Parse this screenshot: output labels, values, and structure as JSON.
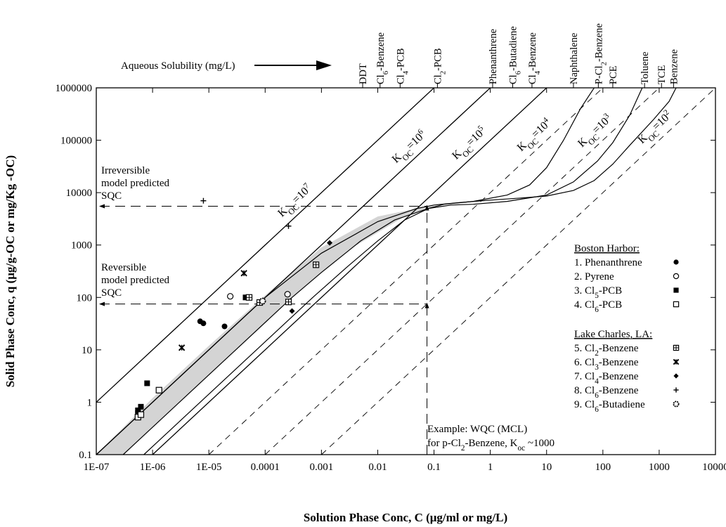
{
  "chart_data": {
    "type": "scatter",
    "title": "",
    "xlabel": "Solution Phase Conc, C (μg/ml or mg/L)",
    "ylabel": "Solid Phase Conc, q (μg/g-OC or mg/Kg -OC)",
    "x_scale": "log",
    "y_scale": "log",
    "xlim": [
      1e-07,
      10000
    ],
    "ylim": [
      0.1,
      1000000
    ],
    "x_ticks": [
      {
        "v": 1e-07,
        "label": "1E-07"
      },
      {
        "v": 1e-06,
        "label": "1E-06"
      },
      {
        "v": 1e-05,
        "label": "1E-05"
      },
      {
        "v": 0.0001,
        "label": "0.0001"
      },
      {
        "v": 0.001,
        "label": "0.001"
      },
      {
        "v": 0.01,
        "label": "0.01"
      },
      {
        "v": 0.1,
        "label": "0.1"
      },
      {
        "v": 1,
        "label": "1"
      },
      {
        "v": 10,
        "label": "10"
      },
      {
        "v": 100,
        "label": "100"
      },
      {
        "v": 1000,
        "label": "1000"
      },
      {
        "v": 10000,
        "label": "10000"
      }
    ],
    "y_ticks": [
      {
        "v": 0.1,
        "label": "0.1"
      },
      {
        "v": 1,
        "label": "1"
      },
      {
        "v": 10,
        "label": "10"
      },
      {
        "v": 100,
        "label": "100"
      },
      {
        "v": 1000,
        "label": "1000"
      },
      {
        "v": 10000,
        "label": "10000"
      },
      {
        "v": 100000,
        "label": "100000"
      },
      {
        "v": 1000000,
        "label": "1000000"
      }
    ],
    "top_axis_label": "Aqueous Solubility (mg/L)",
    "solubility_markers": [
      {
        "x": 0.0054,
        "parts": [
          {
            "t": "DDT"
          }
        ]
      },
      {
        "x": 0.011,
        "parts": [
          {
            "t": "Cl"
          },
          {
            "t": "6",
            "sub": true
          },
          {
            "t": "-Benzene"
          }
        ]
      },
      {
        "x": 0.025,
        "parts": [
          {
            "t": "Cl"
          },
          {
            "t": "4",
            "sub": true
          },
          {
            "t": "-PCB"
          }
        ]
      },
      {
        "x": 0.115,
        "parts": [
          {
            "t": "Cl"
          },
          {
            "t": "2",
            "sub": true
          },
          {
            "t": "-PCB"
          }
        ]
      },
      {
        "x": 1.1,
        "parts": [
          {
            "t": "Phenanthrene"
          }
        ]
      },
      {
        "x": 2.5,
        "parts": [
          {
            "t": "Cl"
          },
          {
            "t": "6",
            "sub": true
          },
          {
            "t": "-Butadiene"
          }
        ]
      },
      {
        "x": 5.5,
        "parts": [
          {
            "t": "Cl"
          },
          {
            "t": "4",
            "sub": true
          },
          {
            "t": "-Benzene"
          }
        ]
      },
      {
        "x": 30,
        "parts": [
          {
            "t": "Naphthalene"
          }
        ]
      },
      {
        "x": 83,
        "parts": [
          {
            "t": "P-Cl"
          },
          {
            "t": "2",
            "sub": true
          },
          {
            "t": "-Benzene"
          }
        ]
      },
      {
        "x": 150,
        "parts": [
          {
            "t": "PCE"
          }
        ]
      },
      {
        "x": 550,
        "parts": [
          {
            "t": "Toluene"
          }
        ]
      },
      {
        "x": 1100,
        "parts": [
          {
            "t": "TCE"
          }
        ]
      },
      {
        "x": 1800,
        "parts": [
          {
            "t": "Benzene"
          }
        ]
      }
    ],
    "koc_lines": [
      {
        "exp": "7",
        "koc": 10000000,
        "solid": true,
        "label_at": 0.00028
      },
      {
        "exp": "6",
        "koc": 1000000,
        "solid": true,
        "label_at": 0.03
      },
      {
        "exp": "5",
        "koc": 100000,
        "solid": true,
        "label_at": 0.35
      },
      {
        "exp": "4",
        "koc": 10000,
        "solid": false,
        "label_at": 5
      },
      {
        "exp": "3",
        "koc": 1000,
        "solid": false,
        "label_at": 60
      },
      {
        "exp": "2",
        "koc": 100,
        "solid": false,
        "label_at": 700
      }
    ],
    "koc_label_prefix": "K",
    "koc_label_sub": "OC",
    "koc_label_mid": "=10",
    "curves": [
      {
        "name": "upper",
        "points": [
          [
            1e-07,
            0.1
          ],
          [
            1e-05,
            10
          ],
          [
            0.0001,
            100
          ],
          [
            0.001,
            700
          ],
          [
            0.01,
            2800
          ],
          [
            0.05,
            5000
          ],
          [
            0.1,
            5800
          ],
          [
            0.3,
            6500
          ],
          [
            1,
            7200
          ],
          [
            3,
            7800
          ],
          [
            10,
            8600
          ],
          [
            30,
            11000
          ],
          [
            70,
            17000
          ],
          [
            150,
            35000
          ],
          [
            300,
            80000
          ],
          [
            800,
            250000
          ],
          [
            1500,
            550000
          ],
          [
            2000,
            1000000
          ]
        ]
      },
      {
        "name": "middle",
        "points": [
          [
            3e-07,
            0.1
          ],
          [
            3e-06,
            1
          ],
          [
            3e-05,
            10
          ],
          [
            0.0003,
            100
          ],
          [
            0.001,
            300
          ],
          [
            0.005,
            1200
          ],
          [
            0.02,
            3000
          ],
          [
            0.08,
            5000
          ],
          [
            0.2,
            5800
          ],
          [
            0.5,
            6000
          ],
          [
            2,
            6800
          ],
          [
            10,
            9000
          ],
          [
            30,
            16000
          ],
          [
            80,
            40000
          ],
          [
            150,
            90000
          ],
          [
            300,
            300000
          ],
          [
            500,
            1000000
          ]
        ]
      },
      {
        "name": "lower",
        "points": [
          [
            7e-07,
            0.1
          ],
          [
            7e-06,
            1
          ],
          [
            7e-05,
            10
          ],
          [
            0.0007,
            100
          ],
          [
            0.003,
            400
          ],
          [
            0.01,
            1200
          ],
          [
            0.03,
            3000
          ],
          [
            0.08,
            5000
          ],
          [
            0.15,
            6000
          ],
          [
            0.5,
            6800
          ],
          [
            2,
            9000
          ],
          [
            5,
            14000
          ],
          [
            10,
            30000
          ],
          [
            20,
            100000
          ],
          [
            40,
            400000
          ],
          [
            70,
            1000000
          ]
        ]
      }
    ],
    "band_lower": [
      [
        3e-07,
        0.1
      ],
      [
        3e-06,
        1
      ],
      [
        3e-05,
        10
      ],
      [
        0.0003,
        100
      ],
      [
        0.003,
        800
      ],
      [
        0.03,
        3500
      ],
      [
        0.1,
        5500
      ]
    ],
    "band_upper": [
      [
        1e-07,
        0.1
      ],
      [
        1e-06,
        1.2
      ],
      [
        1e-05,
        12
      ],
      [
        0.0001,
        110
      ],
      [
        0.001,
        900
      ],
      [
        0.01,
        3500
      ],
      [
        0.1,
        5800
      ]
    ],
    "series": [
      {
        "name": "Phenanthrene",
        "marker": "filled-circle",
        "points": [
          [
            7e-06,
            35
          ],
          [
            8e-06,
            32
          ],
          [
            1.9e-05,
            28
          ]
        ]
      },
      {
        "name": "Pyrene",
        "marker": "open-circle",
        "points": [
          [
            2.4e-05,
            105
          ],
          [
            0.00025,
            115
          ]
        ]
      },
      {
        "name": "Cl5-PCB",
        "marker": "filled-square",
        "points": [
          [
            5.5e-07,
            0.62
          ],
          [
            5.5e-07,
            0.7
          ],
          [
            6.2e-07,
            0.82
          ],
          [
            8e-07,
            2.3
          ],
          [
            4.5e-05,
            100
          ],
          [
            5e-05,
            100
          ]
        ]
      },
      {
        "name": "Cl6-PCB",
        "marker": "open-square",
        "points": [
          [
            5.5e-07,
            0.52
          ],
          [
            6.2e-07,
            0.58
          ],
          [
            1.3e-06,
            1.7
          ]
        ]
      },
      {
        "name": "Cl2-Benzene",
        "marker": "boxed-cross",
        "points": [
          [
            5.2e-05,
            100
          ],
          [
            8e-05,
            80
          ],
          [
            0.00026,
            82
          ],
          [
            0.0008,
            420
          ]
        ]
      },
      {
        "name": "Cl3-Benzene",
        "marker": "star",
        "points": [
          [
            3.3e-06,
            11
          ],
          [
            4.2e-05,
            290
          ]
        ]
      },
      {
        "name": "Cl4-Benzene",
        "marker": "filled-diamond",
        "points": [
          [
            0.0003,
            55
          ],
          [
            0.0014,
            1100
          ]
        ]
      },
      {
        "name": "Cl6-Benzene",
        "marker": "plus",
        "points": [
          [
            8e-06,
            7000
          ],
          [
            0.00026,
            2300
          ]
        ]
      },
      {
        "name": "Cl6-Butadiene",
        "marker": "gear-circle",
        "points": [
          [
            9e-05,
            85
          ]
        ]
      }
    ],
    "reference_lines": [
      {
        "name": "irreversible",
        "y": 5500,
        "x_end": 0.075
      },
      {
        "name": "reversible",
        "y": 75,
        "x_end": 0.075
      },
      {
        "name": "example-wqc",
        "x": 0.075,
        "y_from": 0.1,
        "y_to": 5500
      }
    ],
    "annotations": {
      "irreversible": [
        "Irreversible",
        "model predicted",
        "SQC"
      ],
      "reversible": [
        "Reversible",
        "model predicted",
        "SQC"
      ],
      "example_line1": "Example:  WQC (MCL)",
      "example_line2_a": "for p-Cl",
      "example_line2_sub": "2",
      "example_line2_b": "-Benzene, K",
      "example_line2_sub2": "oc",
      "example_line2_c": " ~1000"
    },
    "legend": {
      "placement": "right",
      "groups": [
        {
          "title": "Boston Harbor:",
          "items": [
            {
              "parts": [
                {
                  "t": "1. Phenanthrene"
                }
              ],
              "marker": "filled-circle"
            },
            {
              "parts": [
                {
                  "t": "2. Pyrene"
                }
              ],
              "marker": "open-circle"
            },
            {
              "parts": [
                {
                  "t": "3. Cl"
                },
                {
                  "t": "5",
                  "sub": true
                },
                {
                  "t": "-PCB"
                }
              ],
              "marker": "filled-square"
            },
            {
              "parts": [
                {
                  "t": "4. Cl"
                },
                {
                  "t": "6",
                  "sub": true
                },
                {
                  "t": "-PCB"
                }
              ],
              "marker": "open-square"
            }
          ]
        },
        {
          "title": "Lake Charles, LA:",
          "items": [
            {
              "parts": [
                {
                  "t": "5. Cl"
                },
                {
                  "t": "2",
                  "sub": true
                },
                {
                  "t": "-Benzene"
                }
              ],
              "marker": "boxed-cross"
            },
            {
              "parts": [
                {
                  "t": "6. Cl"
                },
                {
                  "t": "3",
                  "sub": true
                },
                {
                  "t": "-Benzene"
                }
              ],
              "marker": "star"
            },
            {
              "parts": [
                {
                  "t": "7. Cl"
                },
                {
                  "t": "4",
                  "sub": true
                },
                {
                  "t": "-Benzene"
                }
              ],
              "marker": "filled-diamond"
            },
            {
              "parts": [
                {
                  "t": "8. Cl"
                },
                {
                  "t": "6",
                  "sub": true
                },
                {
                  "t": "-Benzene"
                }
              ],
              "marker": "plus"
            },
            {
              "parts": [
                {
                  "t": "9. Cl"
                },
                {
                  "t": "6",
                  "sub": true
                },
                {
                  "t": "-Butadiene"
                }
              ],
              "marker": "gear-circle"
            }
          ]
        }
      ]
    },
    "grid": false,
    "band_color": "#d4d4d4"
  }
}
